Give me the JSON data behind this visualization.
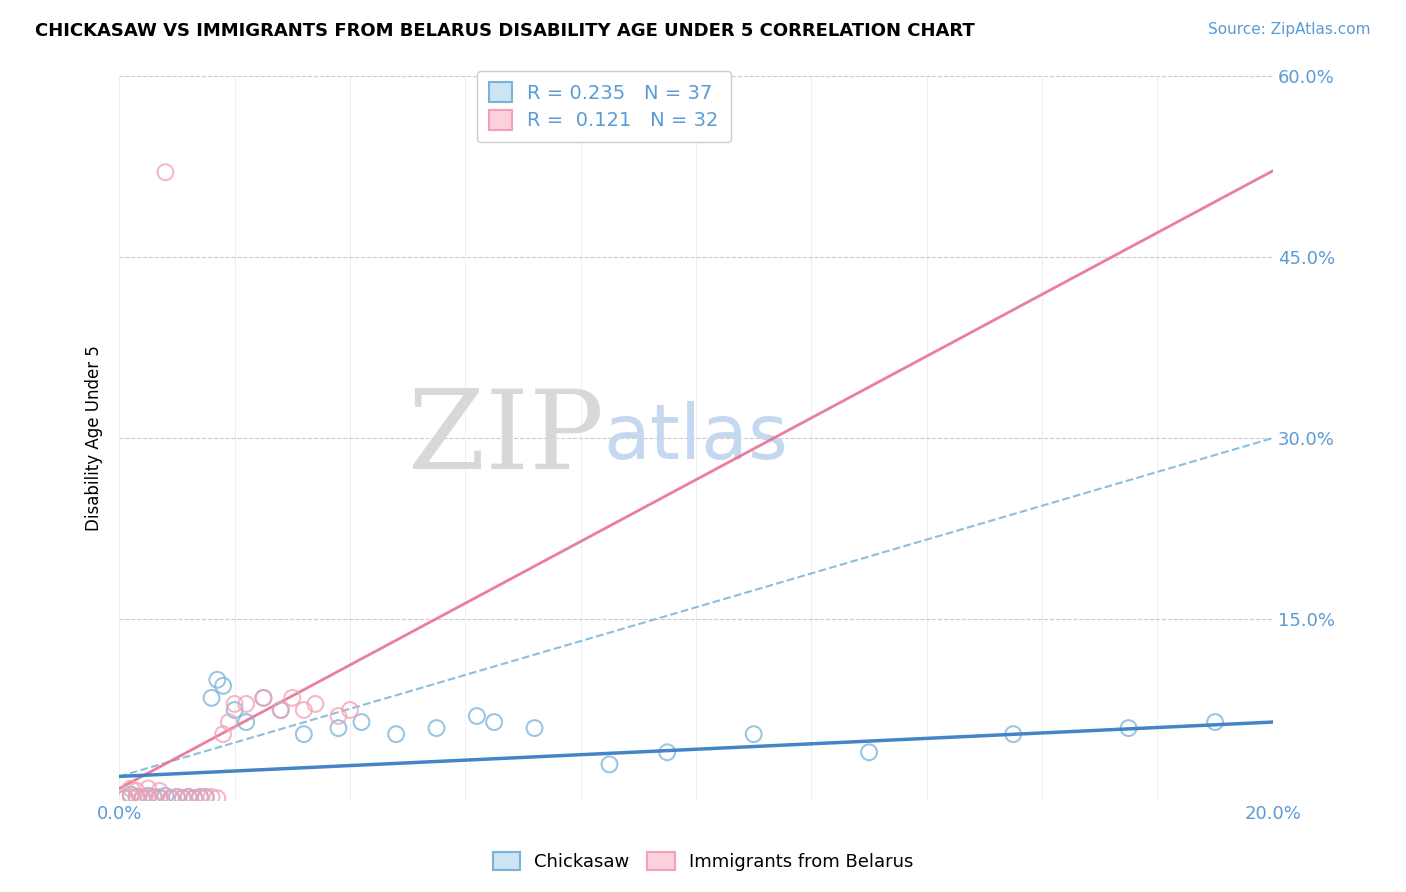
{
  "title": "CHICKASAW VS IMMIGRANTS FROM BELARUS DISABILITY AGE UNDER 5 CORRELATION CHART",
  "source": "Source: ZipAtlas.com",
  "ylabel": "Disability Age Under 5",
  "r1": "0.235",
  "n1": "37",
  "r2": "0.121",
  "n2": "32",
  "color_blue": "#7ab3d9",
  "color_pink": "#f4a0b5",
  "trend_blue_color": "#7ab3d9",
  "trend_pink_color": "#e87090",
  "xlim": [
    0.0,
    0.2
  ],
  "ylim": [
    0.0,
    0.6
  ],
  "ytick_vals": [
    0.15,
    0.3,
    0.45,
    0.6
  ],
  "ytick_labels": [
    "15.0%",
    "30.0%",
    "45.0%",
    "60.0%"
  ],
  "xtick_labels": [
    "0.0%",
    "20.0%"
  ],
  "background_color": "#ffffff",
  "grid_color": "#cccccc",
  "axis_label_color": "#5b9bd5",
  "watermark_ZIP_color": "#d8d8d8",
  "watermark_atlas_color": "#c5d8f0",
  "chickasaw_x": [
    0.001,
    0.002,
    0.003,
    0.004,
    0.005,
    0.006,
    0.007,
    0.008,
    0.009,
    0.01,
    0.011,
    0.012,
    0.013,
    0.014,
    0.015,
    0.016,
    0.017,
    0.018,
    0.02,
    0.022,
    0.025,
    0.028,
    0.032,
    0.038,
    0.042,
    0.048,
    0.055,
    0.062,
    0.065,
    0.072,
    0.085,
    0.095,
    0.11,
    0.13,
    0.155,
    0.175,
    0.19
  ],
  "chickasaw_y": [
    0.002,
    0.005,
    0.003,
    0.002,
    0.004,
    0.003,
    0.002,
    0.004,
    0.002,
    0.003,
    0.002,
    0.003,
    0.002,
    0.003,
    0.003,
    0.085,
    0.1,
    0.095,
    0.075,
    0.065,
    0.085,
    0.075,
    0.055,
    0.06,
    0.065,
    0.055,
    0.06,
    0.07,
    0.065,
    0.06,
    0.03,
    0.04,
    0.055,
    0.04,
    0.055,
    0.06,
    0.065
  ],
  "belarus_x": [
    0.001,
    0.002,
    0.003,
    0.004,
    0.005,
    0.006,
    0.007,
    0.008,
    0.009,
    0.01,
    0.011,
    0.012,
    0.013,
    0.014,
    0.015,
    0.016,
    0.017,
    0.018,
    0.019,
    0.02,
    0.022,
    0.025,
    0.028,
    0.03,
    0.032,
    0.034,
    0.038,
    0.04,
    0.002,
    0.003,
    0.005,
    0.007
  ],
  "belarus_y": [
    0.002,
    0.003,
    0.002,
    0.003,
    0.003,
    0.002,
    0.003,
    0.52,
    0.002,
    0.003,
    0.002,
    0.003,
    0.002,
    0.003,
    0.002,
    0.003,
    0.002,
    0.055,
    0.065,
    0.08,
    0.08,
    0.085,
    0.075,
    0.085,
    0.075,
    0.08,
    0.07,
    0.075,
    0.01,
    0.008,
    0.01,
    0.008
  ]
}
